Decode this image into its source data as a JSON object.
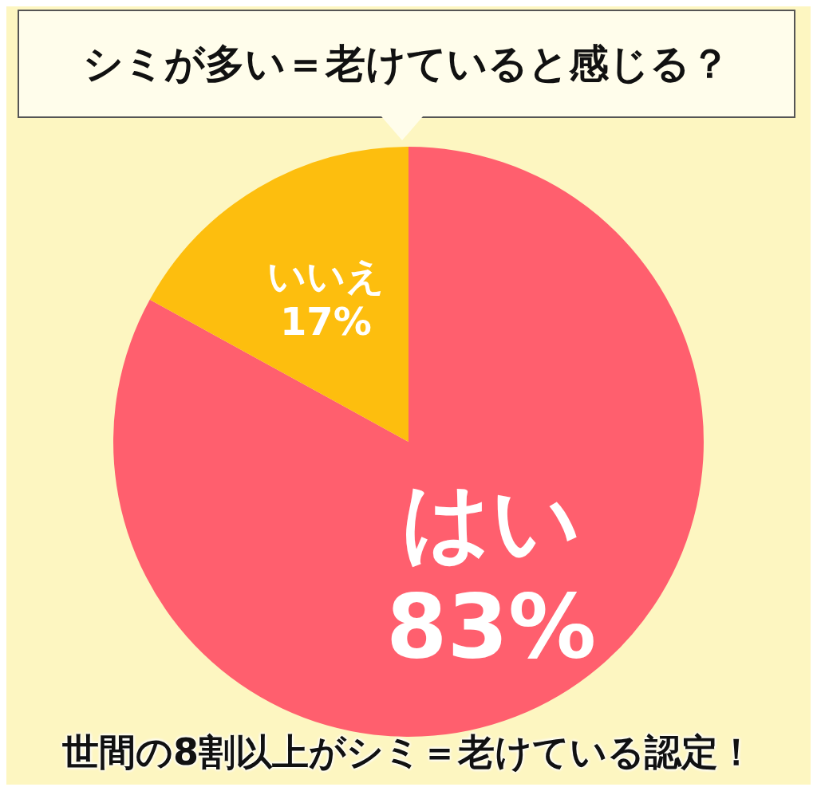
{
  "chart_data": {
    "type": "pie",
    "title": "シミが多い＝老けていると感じる？",
    "categories": [
      "はい",
      "いいえ"
    ],
    "values": [
      83,
      17
    ],
    "colors": [
      "#ff5f6e",
      "#fdbe0e"
    ],
    "value_labels": [
      "83%",
      "17%"
    ],
    "legend": false,
    "annotations": [
      "世間の8割以上がシミ＝老けている認定！"
    ]
  }
}
